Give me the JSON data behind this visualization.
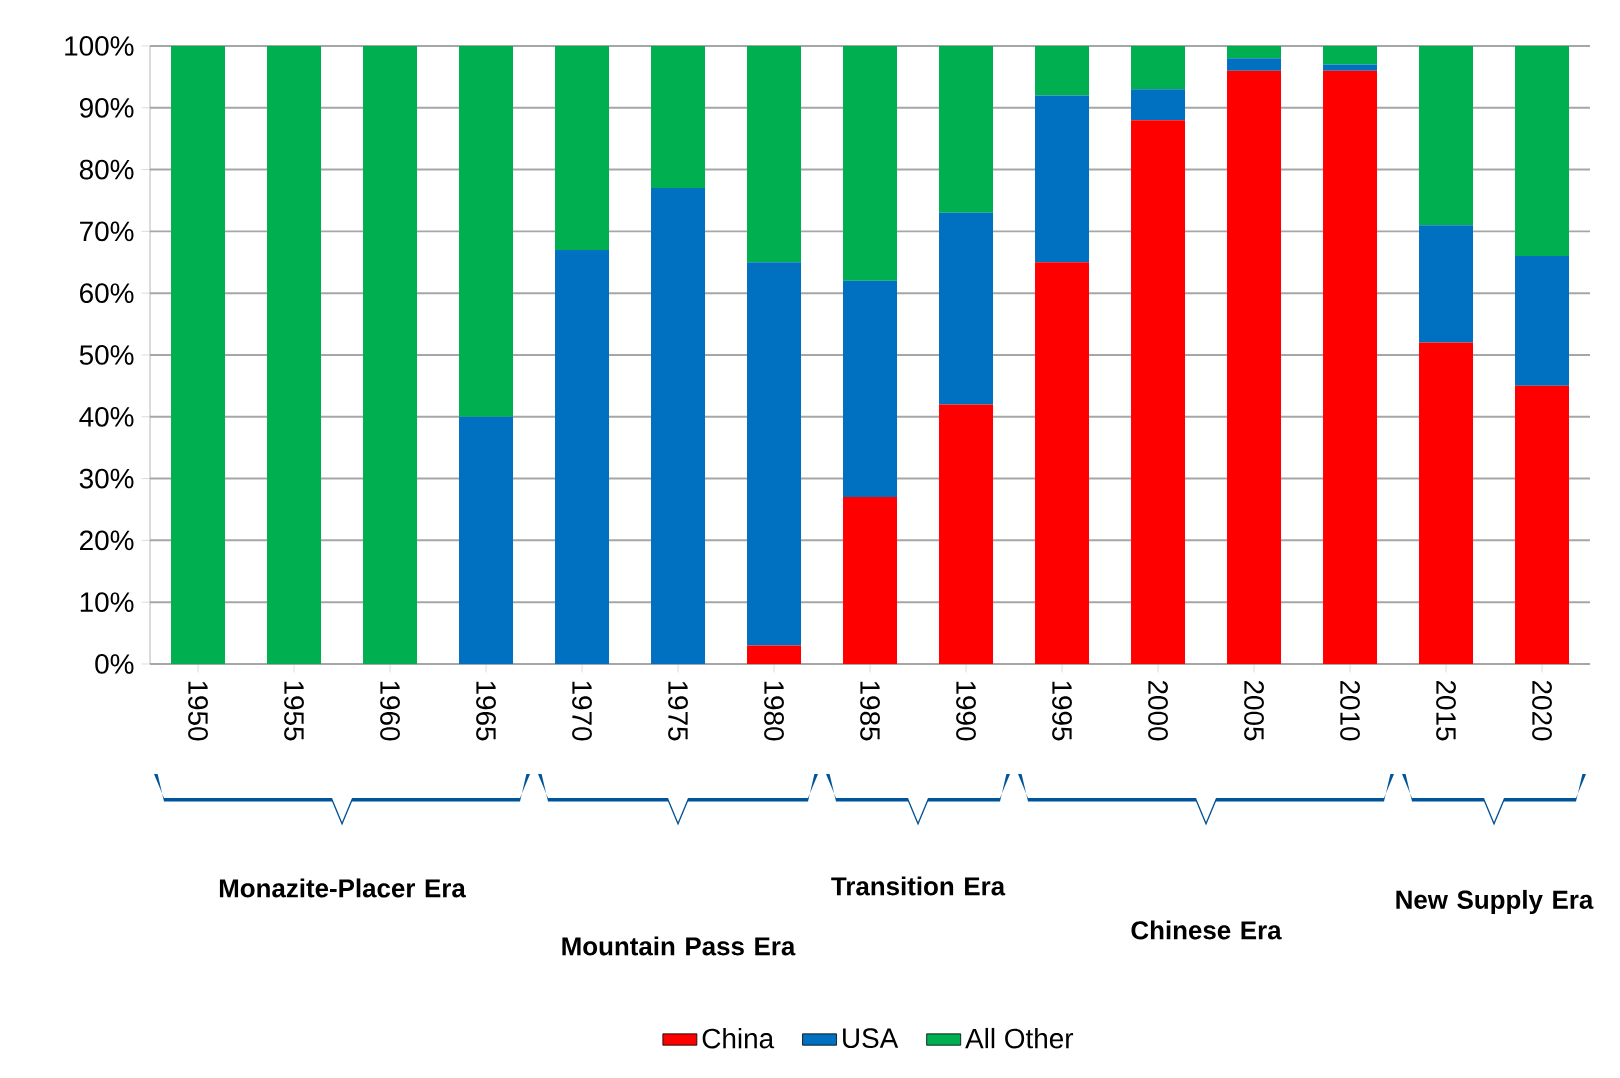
{
  "chart_data": {
    "type": "bar",
    "stacked": true,
    "categories": [
      "1950",
      "1955",
      "1960",
      "1965",
      "1970",
      "1975",
      "1980",
      "1985",
      "1990",
      "1995",
      "2000",
      "2005",
      "2010",
      "2015",
      "2020"
    ],
    "series": [
      {
        "name": "China",
        "color": "#ff0000",
        "values": [
          0,
          0,
          0,
          0,
          0,
          0,
          3,
          27,
          42,
          65,
          88,
          96,
          96,
          52,
          45
        ]
      },
      {
        "name": "USA",
        "color": "#0070c0",
        "values": [
          0,
          0,
          0,
          40,
          67,
          77,
          62,
          35,
          31,
          27,
          5,
          2,
          1,
          19,
          21
        ]
      },
      {
        "name": "All Other",
        "color": "#00b050",
        "values": [
          100,
          100,
          100,
          60,
          33,
          23,
          35,
          38,
          27,
          8,
          7,
          2,
          3,
          29,
          34
        ]
      }
    ],
    "ylim": [
      0,
      100
    ],
    "yticks": [
      {
        "value": 0,
        "label": "0%"
      },
      {
        "value": 10,
        "label": "10%"
      },
      {
        "value": 20,
        "label": "20%"
      },
      {
        "value": 30,
        "label": "30%"
      },
      {
        "value": 40,
        "label": "40%"
      },
      {
        "value": 50,
        "label": "50%"
      },
      {
        "value": 60,
        "label": "60%"
      },
      {
        "value": 70,
        "label": "70%"
      },
      {
        "value": 80,
        "label": "80%"
      },
      {
        "value": 90,
        "label": "90%"
      },
      {
        "value": 100,
        "label": "100%"
      }
    ],
    "grid": "y",
    "legend": "bottom",
    "annotations": [
      "Monazite-Placer Era",
      "Mountain Pass Era",
      "Transition Era",
      "Chinese Era",
      "New Supply Era"
    ]
  }
}
